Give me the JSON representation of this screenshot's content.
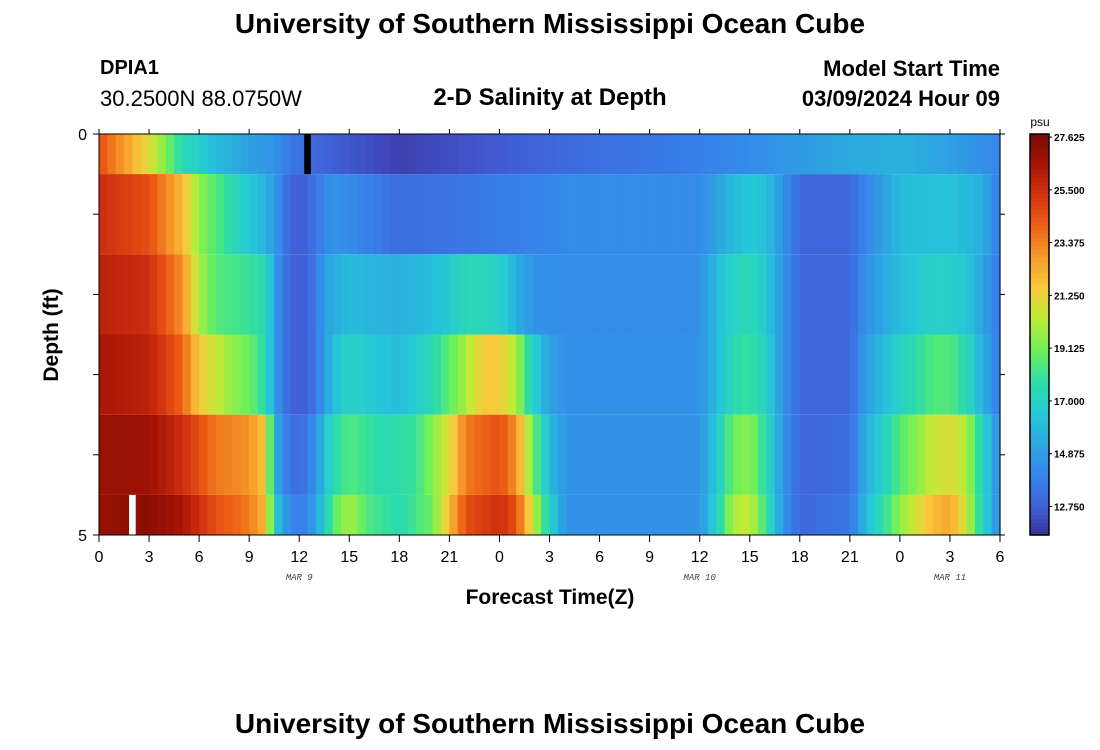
{
  "header": {
    "title": "University of Southern Mississippi Ocean Cube",
    "station_id": "DPIA1",
    "station_coords": "30.2500N  88.0750W",
    "subtitle": "2-D Salinity at Depth",
    "model_label": "Model Start Time",
    "model_time": "03/09/2024 Hour 09"
  },
  "footer": {
    "title": "University of Southern Mississippi Ocean Cube"
  },
  "chart_data": {
    "type": "heatmap",
    "title": "2-D Salinity at Depth",
    "xlabel": "Forecast Time(Z)",
    "ylabel": "Depth (ft)",
    "x_tick_labels": [
      "0",
      "3",
      "6",
      "9",
      "12",
      "15",
      "18",
      "21",
      "0",
      "3",
      "6",
      "9",
      "12",
      "15",
      "18",
      "21",
      "0",
      "3",
      "6"
    ],
    "x_tick_hours": [
      0,
      3,
      6,
      9,
      12,
      15,
      18,
      21,
      24,
      27,
      30,
      33,
      36,
      39,
      42,
      45,
      48,
      51,
      54
    ],
    "x_range_hours": [
      0,
      54
    ],
    "date_labels": [
      {
        "label": "MAR 9",
        "hour": 12
      },
      {
        "label": "MAR 10",
        "hour": 36
      },
      {
        "label": "MAR 11",
        "hour": 51
      }
    ],
    "y_tick_labels": [
      "0",
      "5"
    ],
    "ylim": [
      0,
      5
    ],
    "colorbar": {
      "unit": "psu",
      "range": [
        11.6,
        27.75
      ],
      "labels": [
        "27.625",
        "25.500",
        "23.375",
        "21.250",
        "19.125",
        "17.000",
        "14.875",
        "12.750"
      ]
    },
    "depth_layers": [
      {
        "depth_top": 0.0,
        "depth_bottom": 0.5,
        "values": [
          [
            0,
            24.5
          ],
          [
            3,
            21
          ],
          [
            5,
            17.5
          ],
          [
            7,
            16
          ],
          [
            9,
            15
          ],
          [
            10.5,
            14.5
          ],
          [
            11.5,
            13.5
          ],
          [
            13,
            13
          ],
          [
            15,
            12.5
          ],
          [
            18,
            12
          ],
          [
            21,
            12.3
          ],
          [
            24,
            12.6
          ],
          [
            27,
            13
          ],
          [
            30,
            13.3
          ],
          [
            33,
            13.5
          ],
          [
            36,
            13.8
          ],
          [
            39,
            14.2
          ],
          [
            42,
            14.8
          ],
          [
            45,
            15.3
          ],
          [
            48,
            15.6
          ],
          [
            51,
            15
          ],
          [
            54,
            14
          ]
        ]
      },
      {
        "depth_top": 0.5,
        "depth_bottom": 1.5,
        "values": [
          [
            0,
            25.5
          ],
          [
            3,
            24.5
          ],
          [
            5,
            22
          ],
          [
            6,
            19.5
          ],
          [
            7,
            18.5
          ],
          [
            8,
            17.5
          ],
          [
            9,
            16.5
          ],
          [
            10.5,
            15
          ],
          [
            11,
            13.5
          ],
          [
            12,
            12.5
          ],
          [
            13,
            13.5
          ],
          [
            14,
            14.5
          ],
          [
            15,
            14.2
          ],
          [
            18,
            13.2
          ],
          [
            21,
            13.4
          ],
          [
            24,
            13.7
          ],
          [
            26,
            13.9
          ],
          [
            28,
            14.2
          ],
          [
            36,
            14.2
          ],
          [
            37,
            15
          ],
          [
            38,
            16
          ],
          [
            39,
            16.5
          ],
          [
            40,
            16.2
          ],
          [
            41,
            14.5
          ],
          [
            42,
            13
          ],
          [
            45,
            13
          ],
          [
            47,
            15
          ],
          [
            48,
            16
          ],
          [
            51,
            16.3
          ],
          [
            53,
            15.5
          ],
          [
            54,
            13.5
          ]
        ]
      },
      {
        "depth_top": 1.5,
        "depth_bottom": 2.5,
        "values": [
          [
            0,
            26
          ],
          [
            3,
            25.5
          ],
          [
            5,
            23
          ],
          [
            6,
            20
          ],
          [
            7,
            18.5
          ],
          [
            9,
            18
          ],
          [
            10,
            17.5
          ],
          [
            10.5,
            15
          ],
          [
            11,
            13.5
          ],
          [
            12,
            12.5
          ],
          [
            13,
            13.5
          ],
          [
            13.5,
            15
          ],
          [
            15,
            16
          ],
          [
            18,
            15.5
          ],
          [
            21,
            16.5
          ],
          [
            22,
            17.5
          ],
          [
            24,
            17
          ],
          [
            25,
            15.5
          ],
          [
            26,
            14.5
          ],
          [
            28,
            14.3
          ],
          [
            36,
            14.3
          ],
          [
            37,
            16
          ],
          [
            38,
            17
          ],
          [
            39,
            17.5
          ],
          [
            40,
            16.5
          ],
          [
            41,
            14.5
          ],
          [
            42,
            13
          ],
          [
            45,
            13
          ],
          [
            46,
            14.5
          ],
          [
            48,
            16
          ],
          [
            50,
            17
          ],
          [
            52,
            16.5
          ],
          [
            53,
            15
          ],
          [
            54,
            13.5
          ]
        ]
      },
      {
        "depth_top": 2.5,
        "depth_bottom": 3.5,
        "values": [
          [
            0,
            26.5
          ],
          [
            3,
            26
          ],
          [
            5,
            24
          ],
          [
            6,
            21.5
          ],
          [
            8,
            19.5
          ],
          [
            9,
            19
          ],
          [
            10,
            17.5
          ],
          [
            10.5,
            15
          ],
          [
            11,
            13.5
          ],
          [
            12,
            12.5
          ],
          [
            13,
            13.5
          ],
          [
            14,
            16
          ],
          [
            15,
            17
          ],
          [
            18,
            16
          ],
          [
            20,
            17.5
          ],
          [
            22,
            20
          ],
          [
            23,
            21.5
          ],
          [
            24,
            21.5
          ],
          [
            25,
            20
          ],
          [
            26,
            17
          ],
          [
            27,
            15
          ],
          [
            28,
            14.4
          ],
          [
            36,
            14.4
          ],
          [
            37,
            16
          ],
          [
            38,
            17.5
          ],
          [
            39,
            18
          ],
          [
            40,
            17
          ],
          [
            41,
            14.5
          ],
          [
            42,
            13
          ],
          [
            45,
            13
          ],
          [
            46,
            15
          ],
          [
            48,
            17
          ],
          [
            50,
            18.5
          ],
          [
            51,
            18.5
          ],
          [
            52,
            17.5
          ],
          [
            53,
            15.5
          ],
          [
            54,
            13.5
          ]
        ]
      },
      {
        "depth_top": 3.5,
        "depth_bottom": 4.5,
        "values": [
          [
            0,
            27
          ],
          [
            3,
            26.8
          ],
          [
            5,
            25.5
          ],
          [
            7,
            23.5
          ],
          [
            9,
            23
          ],
          [
            10,
            21.5
          ],
          [
            10.5,
            16
          ],
          [
            11,
            14
          ],
          [
            12,
            13
          ],
          [
            13,
            14.5
          ],
          [
            14,
            17.5
          ],
          [
            15,
            18.5
          ],
          [
            17,
            17.5
          ],
          [
            19,
            18
          ],
          [
            21,
            21
          ],
          [
            22,
            23.5
          ],
          [
            24,
            24.5
          ],
          [
            25,
            23
          ],
          [
            26,
            19
          ],
          [
            27,
            16
          ],
          [
            28,
            14.5
          ],
          [
            36,
            14.5
          ],
          [
            37,
            16.5
          ],
          [
            38,
            19
          ],
          [
            39,
            19.5
          ],
          [
            40,
            17.5
          ],
          [
            41,
            14.5
          ],
          [
            42,
            13
          ],
          [
            45,
            13.2
          ],
          [
            46,
            15.5
          ],
          [
            48,
            18.5
          ],
          [
            50,
            20.5
          ],
          [
            51,
            21
          ],
          [
            52,
            20
          ],
          [
            53,
            17
          ],
          [
            54,
            14
          ]
        ]
      },
      {
        "depth_top": 4.5,
        "depth_bottom": 5.0,
        "values": [
          [
            0,
            27
          ],
          [
            3,
            27.3
          ],
          [
            5,
            26.5
          ],
          [
            7,
            24.5
          ],
          [
            9,
            23.5
          ],
          [
            10,
            22
          ],
          [
            10.5,
            17
          ],
          [
            11,
            15
          ],
          [
            12,
            13.5
          ],
          [
            13,
            15
          ],
          [
            14,
            18.5
          ],
          [
            15,
            20
          ],
          [
            16,
            18.5
          ],
          [
            18,
            17.5
          ],
          [
            20,
            19
          ],
          [
            21,
            22
          ],
          [
            22,
            24.5
          ],
          [
            24,
            25.5
          ],
          [
            25,
            24.5
          ],
          [
            26,
            20.5
          ],
          [
            27,
            17
          ],
          [
            28,
            14.5
          ],
          [
            36,
            14.5
          ],
          [
            37,
            17
          ],
          [
            38,
            20
          ],
          [
            39,
            20.5
          ],
          [
            40,
            18
          ],
          [
            41,
            14.5
          ],
          [
            42,
            13
          ],
          [
            45,
            13.5
          ],
          [
            46,
            16
          ],
          [
            48,
            19.5
          ],
          [
            50,
            22
          ],
          [
            51,
            22.5
          ],
          [
            52,
            20.5
          ],
          [
            53,
            17
          ],
          [
            54,
            14
          ]
        ]
      }
    ],
    "missing_markers": [
      {
        "color": "#000000",
        "hour_start": 12.3,
        "hour_end": 12.7,
        "depth_top": 0.0,
        "depth_bottom": 0.5
      },
      {
        "color": "#ffffff",
        "hour_start": 1.8,
        "hour_end": 2.2,
        "depth_top": 4.5,
        "depth_bottom": 5.0
      }
    ]
  }
}
